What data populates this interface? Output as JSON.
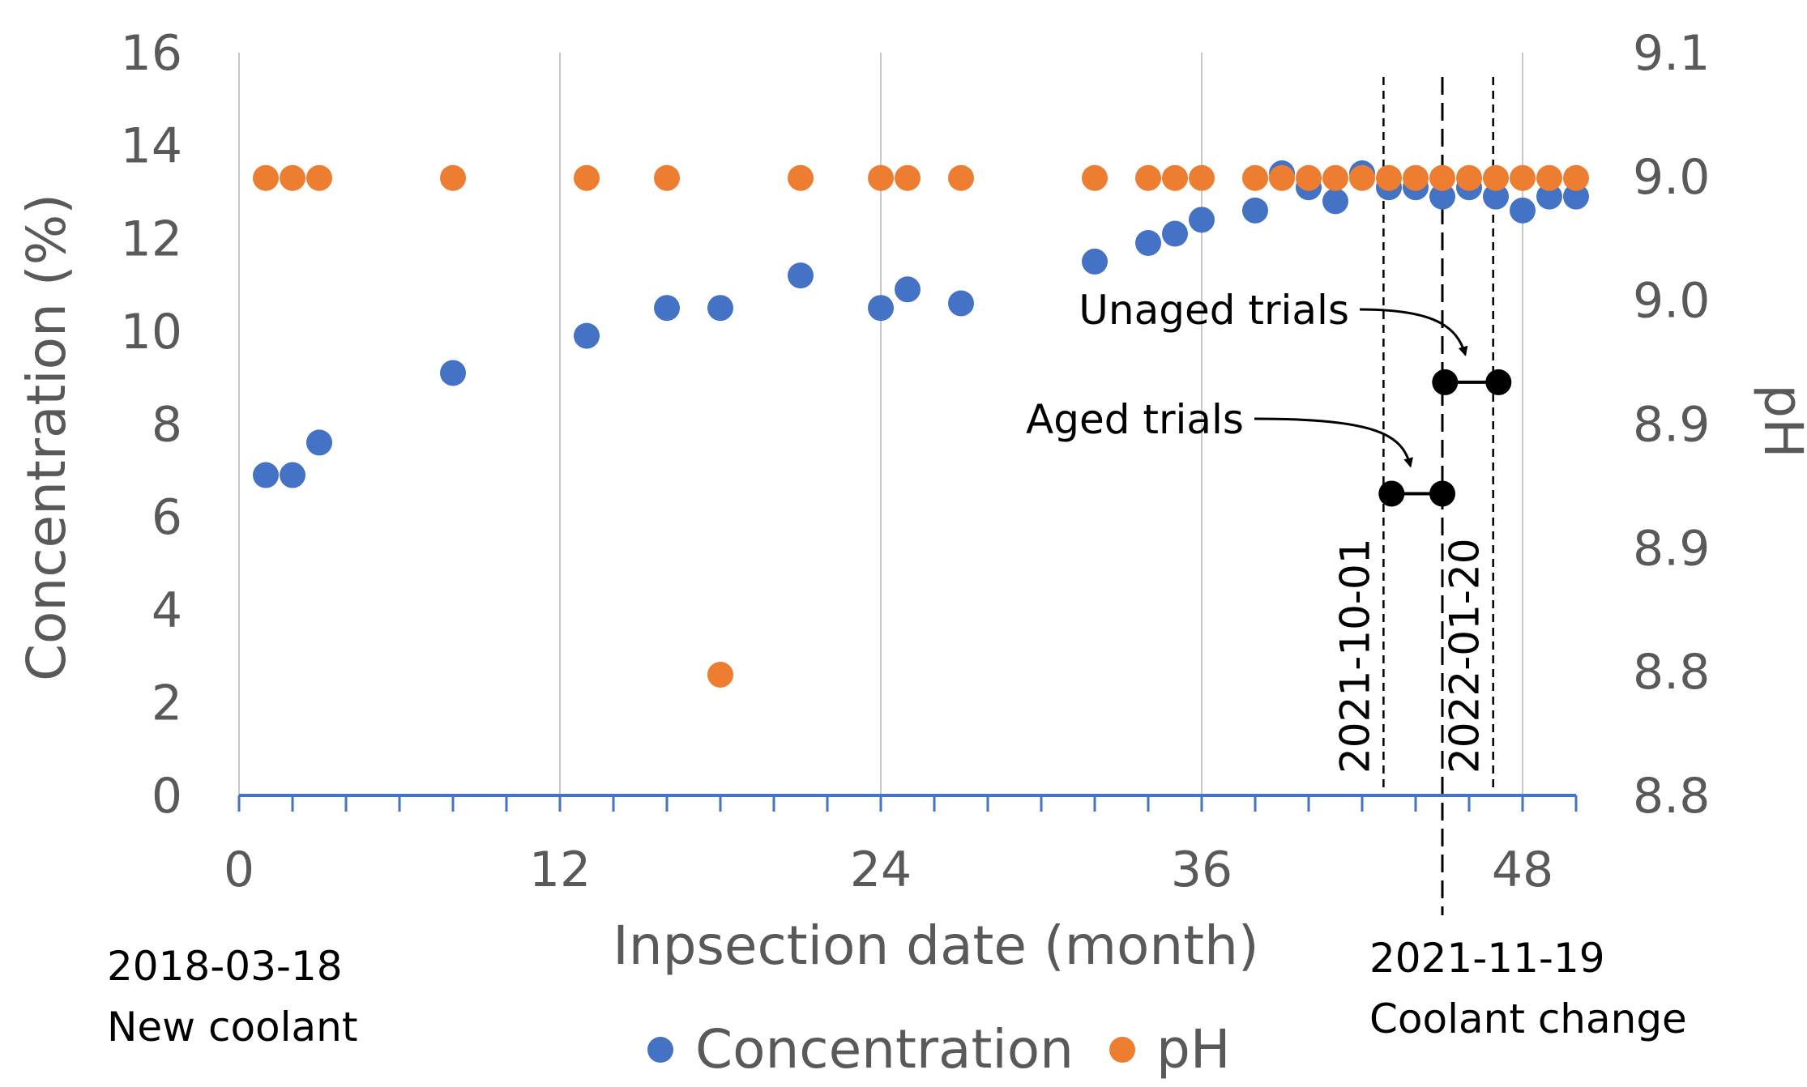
{
  "chart_data": {
    "type": "scatter",
    "xlabel": "Inpsection date (month)",
    "ylabel": "Concentration (%)",
    "y2label": "pH",
    "xlim": [
      0,
      50
    ],
    "ylim": [
      0,
      16
    ],
    "y2lim": [
      8.8,
      9.1
    ],
    "x_ticks": [
      0,
      12,
      24,
      36,
      48
    ],
    "y_ticks": [
      0,
      2,
      4,
      6,
      8,
      10,
      12,
      14,
      16
    ],
    "y2_tick_labels": [
      "8.8",
      "8.8",
      "8.9",
      "8.9",
      "9.0",
      "9.0",
      "9.1"
    ],
    "grid": "vertical",
    "legend_position": "bottom-center",
    "colors": {
      "concentration": "#4472C4",
      "ph": "#ED7D31",
      "trial": "#000000",
      "axis": "#4472C4",
      "grid": "#C8C8C8"
    },
    "series": [
      {
        "name": "Concentration",
        "axis": "left",
        "points": [
          [
            1,
            6.9
          ],
          [
            2,
            6.9
          ],
          [
            3,
            7.6
          ],
          [
            8,
            9.1
          ],
          [
            13,
            9.9
          ],
          [
            16,
            10.5
          ],
          [
            18,
            10.5
          ],
          [
            21,
            11.2
          ],
          [
            24,
            10.5
          ],
          [
            25,
            10.9
          ],
          [
            27,
            10.6
          ],
          [
            32,
            11.5
          ],
          [
            34,
            11.9
          ],
          [
            35,
            12.1
          ],
          [
            36,
            12.4
          ],
          [
            38,
            12.6
          ],
          [
            39,
            13.4
          ],
          [
            40,
            13.1
          ],
          [
            41,
            12.8
          ],
          [
            42,
            13.4
          ],
          [
            43,
            13.1
          ],
          [
            44,
            13.1
          ],
          [
            45,
            12.9
          ],
          [
            46,
            13.1
          ],
          [
            47,
            12.9
          ],
          [
            48,
            12.6
          ],
          [
            49,
            12.9
          ],
          [
            50,
            12.9
          ]
        ]
      },
      {
        "name": "pH",
        "axis": "right",
        "points": [
          [
            1,
            9.0
          ],
          [
            2,
            9.0
          ],
          [
            3,
            9.0
          ],
          [
            8,
            9.0
          ],
          [
            13,
            9.0
          ],
          [
            16,
            9.0
          ],
          [
            18,
            8.8
          ],
          [
            21,
            9.0
          ],
          [
            24,
            9.0
          ],
          [
            25,
            9.0
          ],
          [
            27,
            9.0
          ],
          [
            32,
            9.0
          ],
          [
            34,
            9.0
          ],
          [
            35,
            9.0
          ],
          [
            36,
            9.0
          ],
          [
            38,
            9.0
          ],
          [
            39,
            9.0
          ],
          [
            40,
            9.0
          ],
          [
            41,
            9.0
          ],
          [
            42,
            9.0
          ],
          [
            43,
            9.0
          ],
          [
            44,
            9.0
          ],
          [
            45,
            9.0
          ],
          [
            46,
            9.0
          ],
          [
            47,
            9.0
          ],
          [
            48,
            9.0
          ],
          [
            49,
            9.0
          ],
          [
            50,
            9.0
          ]
        ],
        "display_y_left_units": [
          13.3,
          13.3,
          13.3,
          13.3,
          13.3,
          13.3,
          2.6,
          13.3,
          13.3,
          13.3,
          13.3,
          13.3,
          13.3,
          13.3,
          13.3,
          13.3,
          13.3,
          13.3,
          13.3,
          13.3,
          13.3,
          13.3,
          13.3,
          13.3,
          13.3,
          13.3,
          13.3,
          13.3
        ]
      }
    ],
    "trials": [
      {
        "name": "Aged trials",
        "x": [
          43.1,
          45.0
        ],
        "y": 6.5
      },
      {
        "name": "Unaged trials",
        "x": [
          45.1,
          47.1
        ],
        "y": 8.9
      }
    ],
    "vlines": [
      {
        "x": 42.8,
        "label": "2021-10-01",
        "style": "short-dash"
      },
      {
        "x": 45.0,
        "label": "",
        "style": "long-dash"
      },
      {
        "x": 46.9,
        "label": "2022-01-20",
        "style": "short-dash"
      }
    ],
    "annotations": {
      "start_date": "2018-03-18",
      "start_note": "New coolant",
      "change_date": "2021-11-19",
      "change_note": "Coolant change"
    },
    "legend": [
      "Concentration",
      "pH"
    ]
  }
}
